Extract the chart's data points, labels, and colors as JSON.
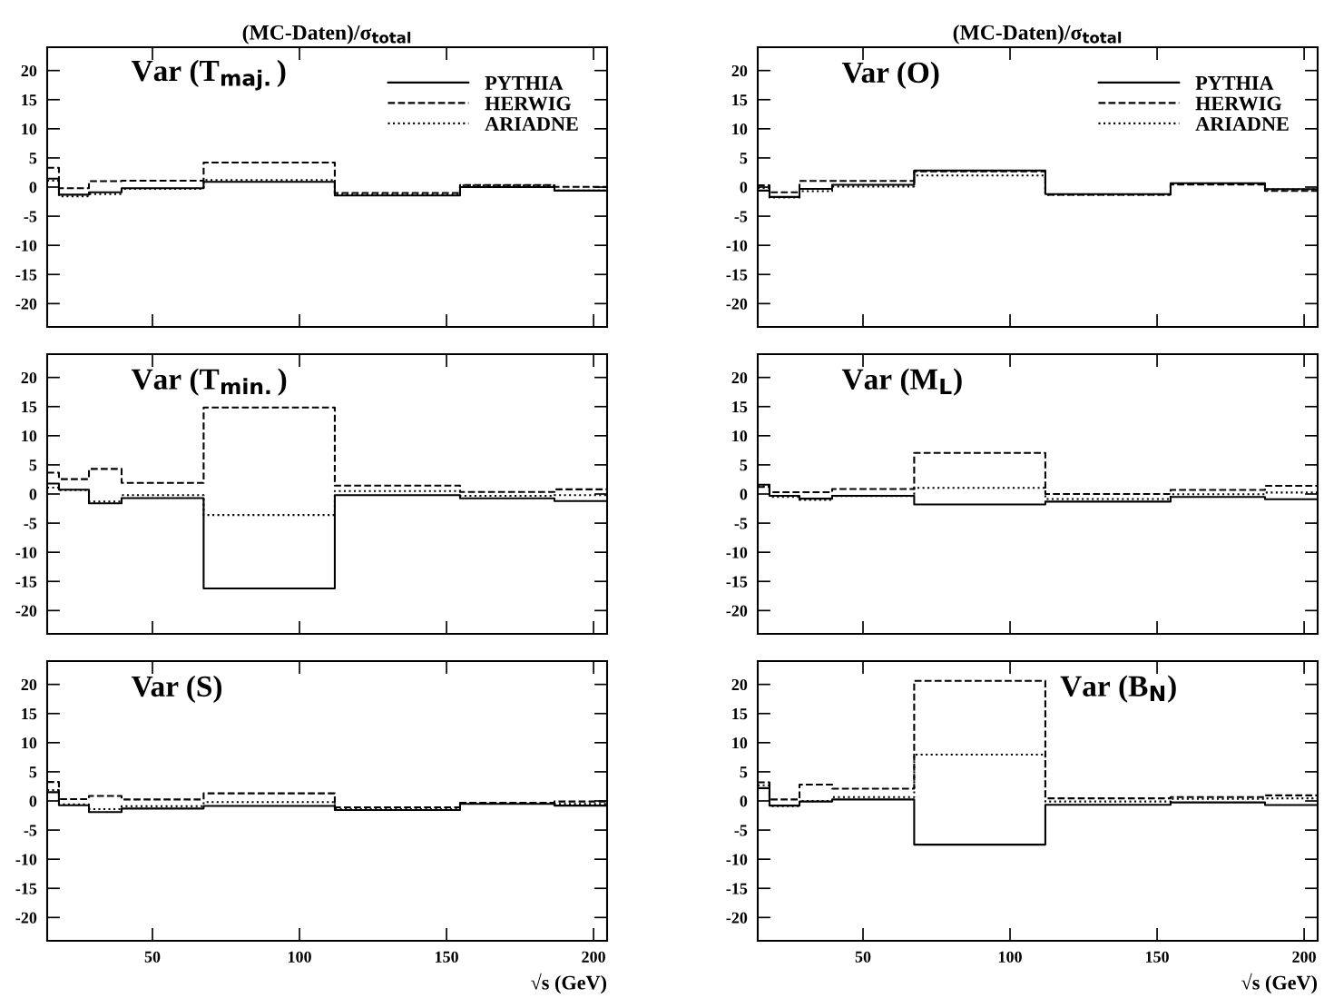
{
  "chart_data": [
    {
      "type": "step",
      "title": "(MC-Daten)/σ$_{total}$",
      "annotations": [
        "Var (T$_{maj.}$)"
      ],
      "x": [
        14.2,
        18.2,
        28.4,
        39.5,
        67.4,
        112,
        154.6,
        186.7,
        204.6
      ],
      "xlim": [
        14.2,
        204.6
      ],
      "xticks": [
        50,
        100,
        150,
        200
      ],
      "ylim": [
        -24,
        24
      ],
      "yticks": [
        -20,
        -15,
        -10,
        -5,
        0,
        5,
        10,
        15,
        20
      ],
      "tick_labels": "y",
      "legend": "top right",
      "grid": false,
      "series": [
        {
          "name": "PYTHIA",
          "color": "#000000",
          "line_style": "solid",
          "values": [
            1.45,
            -1.3,
            -0.9,
            -0.2,
            0.9,
            -1.45,
            0,
            -0.6,
            -0.6
          ]
        },
        {
          "name": "HERWIG",
          "color": "#000000",
          "line_style": "dashed",
          "values": [
            3.3,
            -0.2,
            1.0,
            1.1,
            4.2,
            -1.0,
            0.35,
            0.05,
            0.05
          ]
        },
        {
          "name": "ARIADNE",
          "color": "#000000",
          "line_style": "dotted",
          "values": [
            1.1,
            -1.6,
            -1.2,
            -0.3,
            1.2,
            -1.3,
            0.25,
            -0.6,
            -0.6
          ]
        }
      ]
    },
    {
      "type": "step",
      "annotations": [
        "Var (T$_{min.}$)"
      ],
      "x": [
        14.2,
        18.2,
        28.4,
        39.5,
        67.4,
        112,
        154.6,
        186.7,
        204.6
      ],
      "xlim": [
        14.2,
        204.6
      ],
      "xticks": [
        50,
        100,
        150,
        200
      ],
      "ylim": [
        -24,
        24
      ],
      "yticks": [
        -20,
        -15,
        -10,
        -5,
        0,
        5,
        10,
        15,
        20
      ],
      "tick_labels": "y",
      "grid": false,
      "series": [
        {
          "color": "#000000",
          "line_style": "solid",
          "values": [
            1.8,
            0.75,
            -1.6,
            -0.7,
            -16.2,
            -0.2,
            -0.75,
            -1.2,
            -1.2
          ]
        },
        {
          "color": "#000000",
          "line_style": "dashed",
          "values": [
            3.65,
            2.55,
            4.3,
            1.9,
            14.85,
            1.45,
            0.35,
            0.8,
            0.8
          ]
        },
        {
          "color": "#000000",
          "line_style": "dotted",
          "values": [
            1.1,
            0.65,
            -1.3,
            -0.2,
            -3.6,
            0.5,
            -0.3,
            -0.2,
            -0.2
          ]
        }
      ]
    },
    {
      "type": "step",
      "xlabel": "√s (GeV)",
      "annotations": [
        "Var (S)"
      ],
      "x": [
        14.2,
        18.2,
        28.4,
        39.5,
        67.4,
        112,
        154.6,
        186.7,
        204.6
      ],
      "xlim": [
        14.2,
        204.6
      ],
      "xticks": [
        50,
        100,
        150,
        200
      ],
      "ylim": [
        -24,
        24
      ],
      "yticks": [
        -20,
        -15,
        -10,
        -5,
        0,
        5,
        10,
        15,
        20
      ],
      "grid": false,
      "series": [
        {
          "color": "#000000",
          "line_style": "solid",
          "values": [
            1.5,
            -0.75,
            -1.9,
            -1.3,
            -0.85,
            -1.55,
            -0.5,
            -0.8,
            -0.8
          ]
        },
        {
          "color": "#000000",
          "line_style": "dashed",
          "values": [
            3.25,
            0.3,
            0.85,
            0.25,
            1.3,
            -1.1,
            -0.3,
            -0.1,
            -0.1
          ]
        },
        {
          "color": "#000000",
          "line_style": "dotted",
          "values": [
            1.85,
            -0.6,
            -1.4,
            -0.9,
            -0.2,
            -1.4,
            -0.4,
            -0.5,
            -0.5
          ]
        }
      ]
    },
    {
      "type": "step",
      "title": "(MC-Daten)/σ$_{total}$",
      "annotations": [
        "Var (O)"
      ],
      "x": [
        14.2,
        18.2,
        28.4,
        39.5,
        67.4,
        112,
        154.6,
        186.7,
        204.6
      ],
      "xlim": [
        14.2,
        204.6
      ],
      "xticks": [
        50,
        100,
        150,
        200
      ],
      "ylim": [
        -24,
        24
      ],
      "yticks": [
        -20,
        -15,
        -10,
        -5,
        0,
        5,
        10,
        15,
        20
      ],
      "tick_labels": "y",
      "legend": "top right",
      "grid": false,
      "series": [
        {
          "name": "PYTHIA",
          "color": "#000000",
          "line_style": "solid",
          "values": [
            -0.6,
            -1.7,
            -0.3,
            0.4,
            2.85,
            -1.2,
            0.65,
            -0.35,
            -0.35
          ]
        },
        {
          "name": "HERWIG",
          "color": "#000000",
          "line_style": "dashed",
          "values": [
            0.3,
            -0.9,
            1.05,
            1.05,
            2.7,
            -1.3,
            0.45,
            -0.65,
            -0.65
          ]
        },
        {
          "name": "ARIADNE",
          "color": "#000000",
          "line_style": "dotted",
          "values": [
            -0.15,
            -1.8,
            -0.7,
            0.1,
            2.0,
            -1.3,
            0.5,
            -0.4,
            -0.4
          ]
        }
      ]
    },
    {
      "type": "step",
      "annotations": [
        "Var (M$_{L}$)"
      ],
      "x": [
        14.2,
        18.2,
        28.4,
        39.5,
        67.4,
        112,
        154.6,
        186.7,
        204.6
      ],
      "xlim": [
        14.2,
        204.6
      ],
      "xticks": [
        50,
        100,
        150,
        200
      ],
      "ylim": [
        -24,
        24
      ],
      "yticks": [
        -20,
        -15,
        -10,
        -5,
        0,
        5,
        10,
        15,
        20
      ],
      "tick_labels": "y",
      "grid": false,
      "series": [
        {
          "color": "#000000",
          "line_style": "solid",
          "values": [
            1.6,
            -0.3,
            -0.8,
            -0.3,
            -1.8,
            -1.3,
            -0.5,
            -0.9,
            -0.9
          ]
        },
        {
          "color": "#000000",
          "line_style": "dashed",
          "values": [
            1.2,
            0.3,
            0.3,
            0.85,
            7.05,
            0,
            0.7,
            1.4,
            1.4
          ]
        },
        {
          "color": "#000000",
          "line_style": "dotted",
          "values": [
            1.35,
            -0.5,
            -1.0,
            -0.35,
            1.05,
            -0.85,
            -0.05,
            0.25,
            0.25
          ]
        }
      ]
    },
    {
      "type": "step",
      "xlabel": "√s (GeV)",
      "annotations": [
        "Var (B$_{N}$)"
      ],
      "x": [
        14.2,
        18.2,
        28.4,
        39.5,
        67.4,
        112,
        154.6,
        186.7,
        204.6
      ],
      "xlim": [
        14.2,
        204.6
      ],
      "xticks": [
        50,
        100,
        150,
        200
      ],
      "ylim": [
        -24,
        24
      ],
      "yticks": [
        -20,
        -15,
        -10,
        -5,
        0,
        5,
        10,
        15,
        20
      ],
      "grid": false,
      "series": [
        {
          "color": "#000000",
          "line_style": "solid",
          "values": [
            2.2,
            -0.8,
            -0.1,
            0.25,
            -7.5,
            -0.65,
            -0.25,
            -0.7,
            -0.7
          ]
        },
        {
          "color": "#000000",
          "line_style": "dashed",
          "values": [
            3.2,
            0.25,
            2.8,
            2.1,
            20.6,
            0.45,
            0.65,
            0.95,
            0.95
          ]
        },
        {
          "color": "#000000",
          "line_style": "dotted",
          "values": [
            2.7,
            -0.9,
            0,
            0.65,
            7.95,
            -0.1,
            0.35,
            0.45,
            0.45
          ]
        }
      ]
    }
  ]
}
